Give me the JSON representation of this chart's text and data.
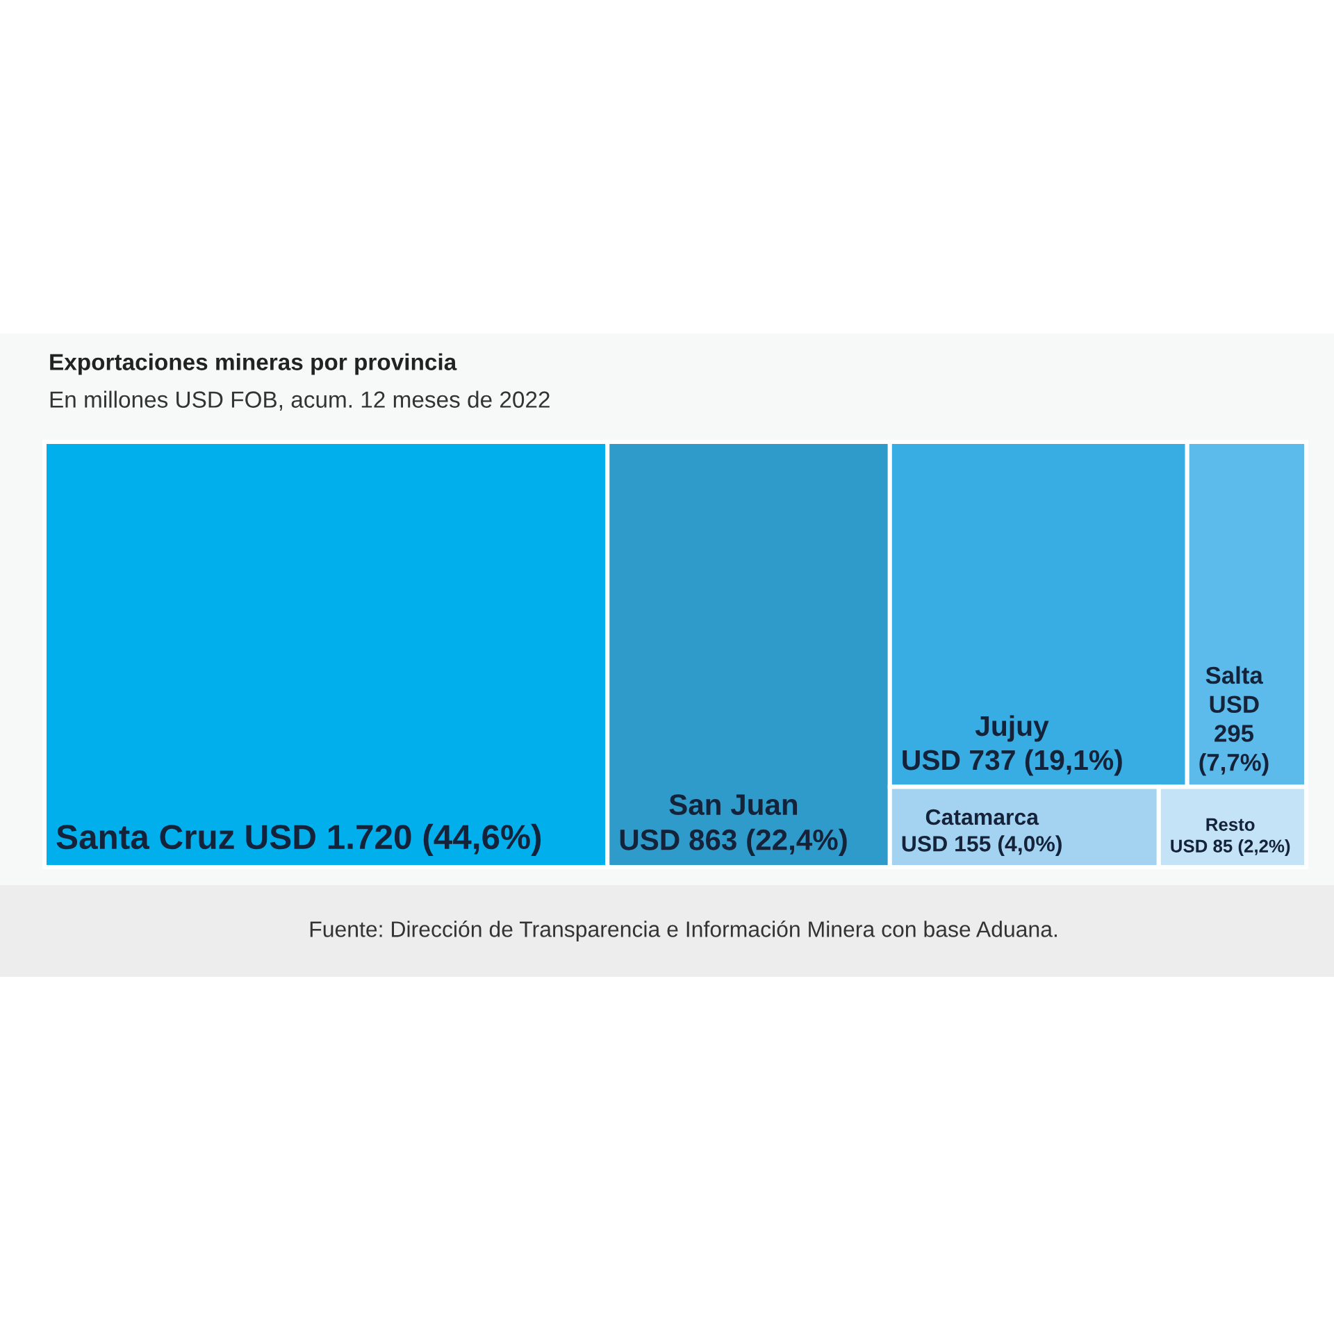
{
  "chart_data": {
    "type": "other",
    "title": "Exportaciones mineras por provincia",
    "subtitle": "En millones USD FOB, acum. 12 meses de 2022",
    "categories": [
      "Santa Cruz",
      "San Juan",
      "Jujuy",
      "Salta",
      "Catamarca",
      "Resto"
    ],
    "values": [
      1720,
      863,
      737,
      295,
      155,
      85
    ],
    "value_labels": [
      "USD 1.720 (44,6%)",
      "USD 863 (22,4%)",
      "USD 737 (19,1%)",
      "USD 295 (7,7%)",
      "USD 155 (4,0%)",
      "USD 85 (2,2%)"
    ],
    "colors": [
      "#00afeb",
      "#2f9bcb",
      "#37ade3",
      "#5cbbea",
      "#a3d3f1",
      "#c5e3f6"
    ],
    "annotations": [
      "Fuente: Dirección de Transparencia e Información Minera con base Aduana."
    ]
  }
}
